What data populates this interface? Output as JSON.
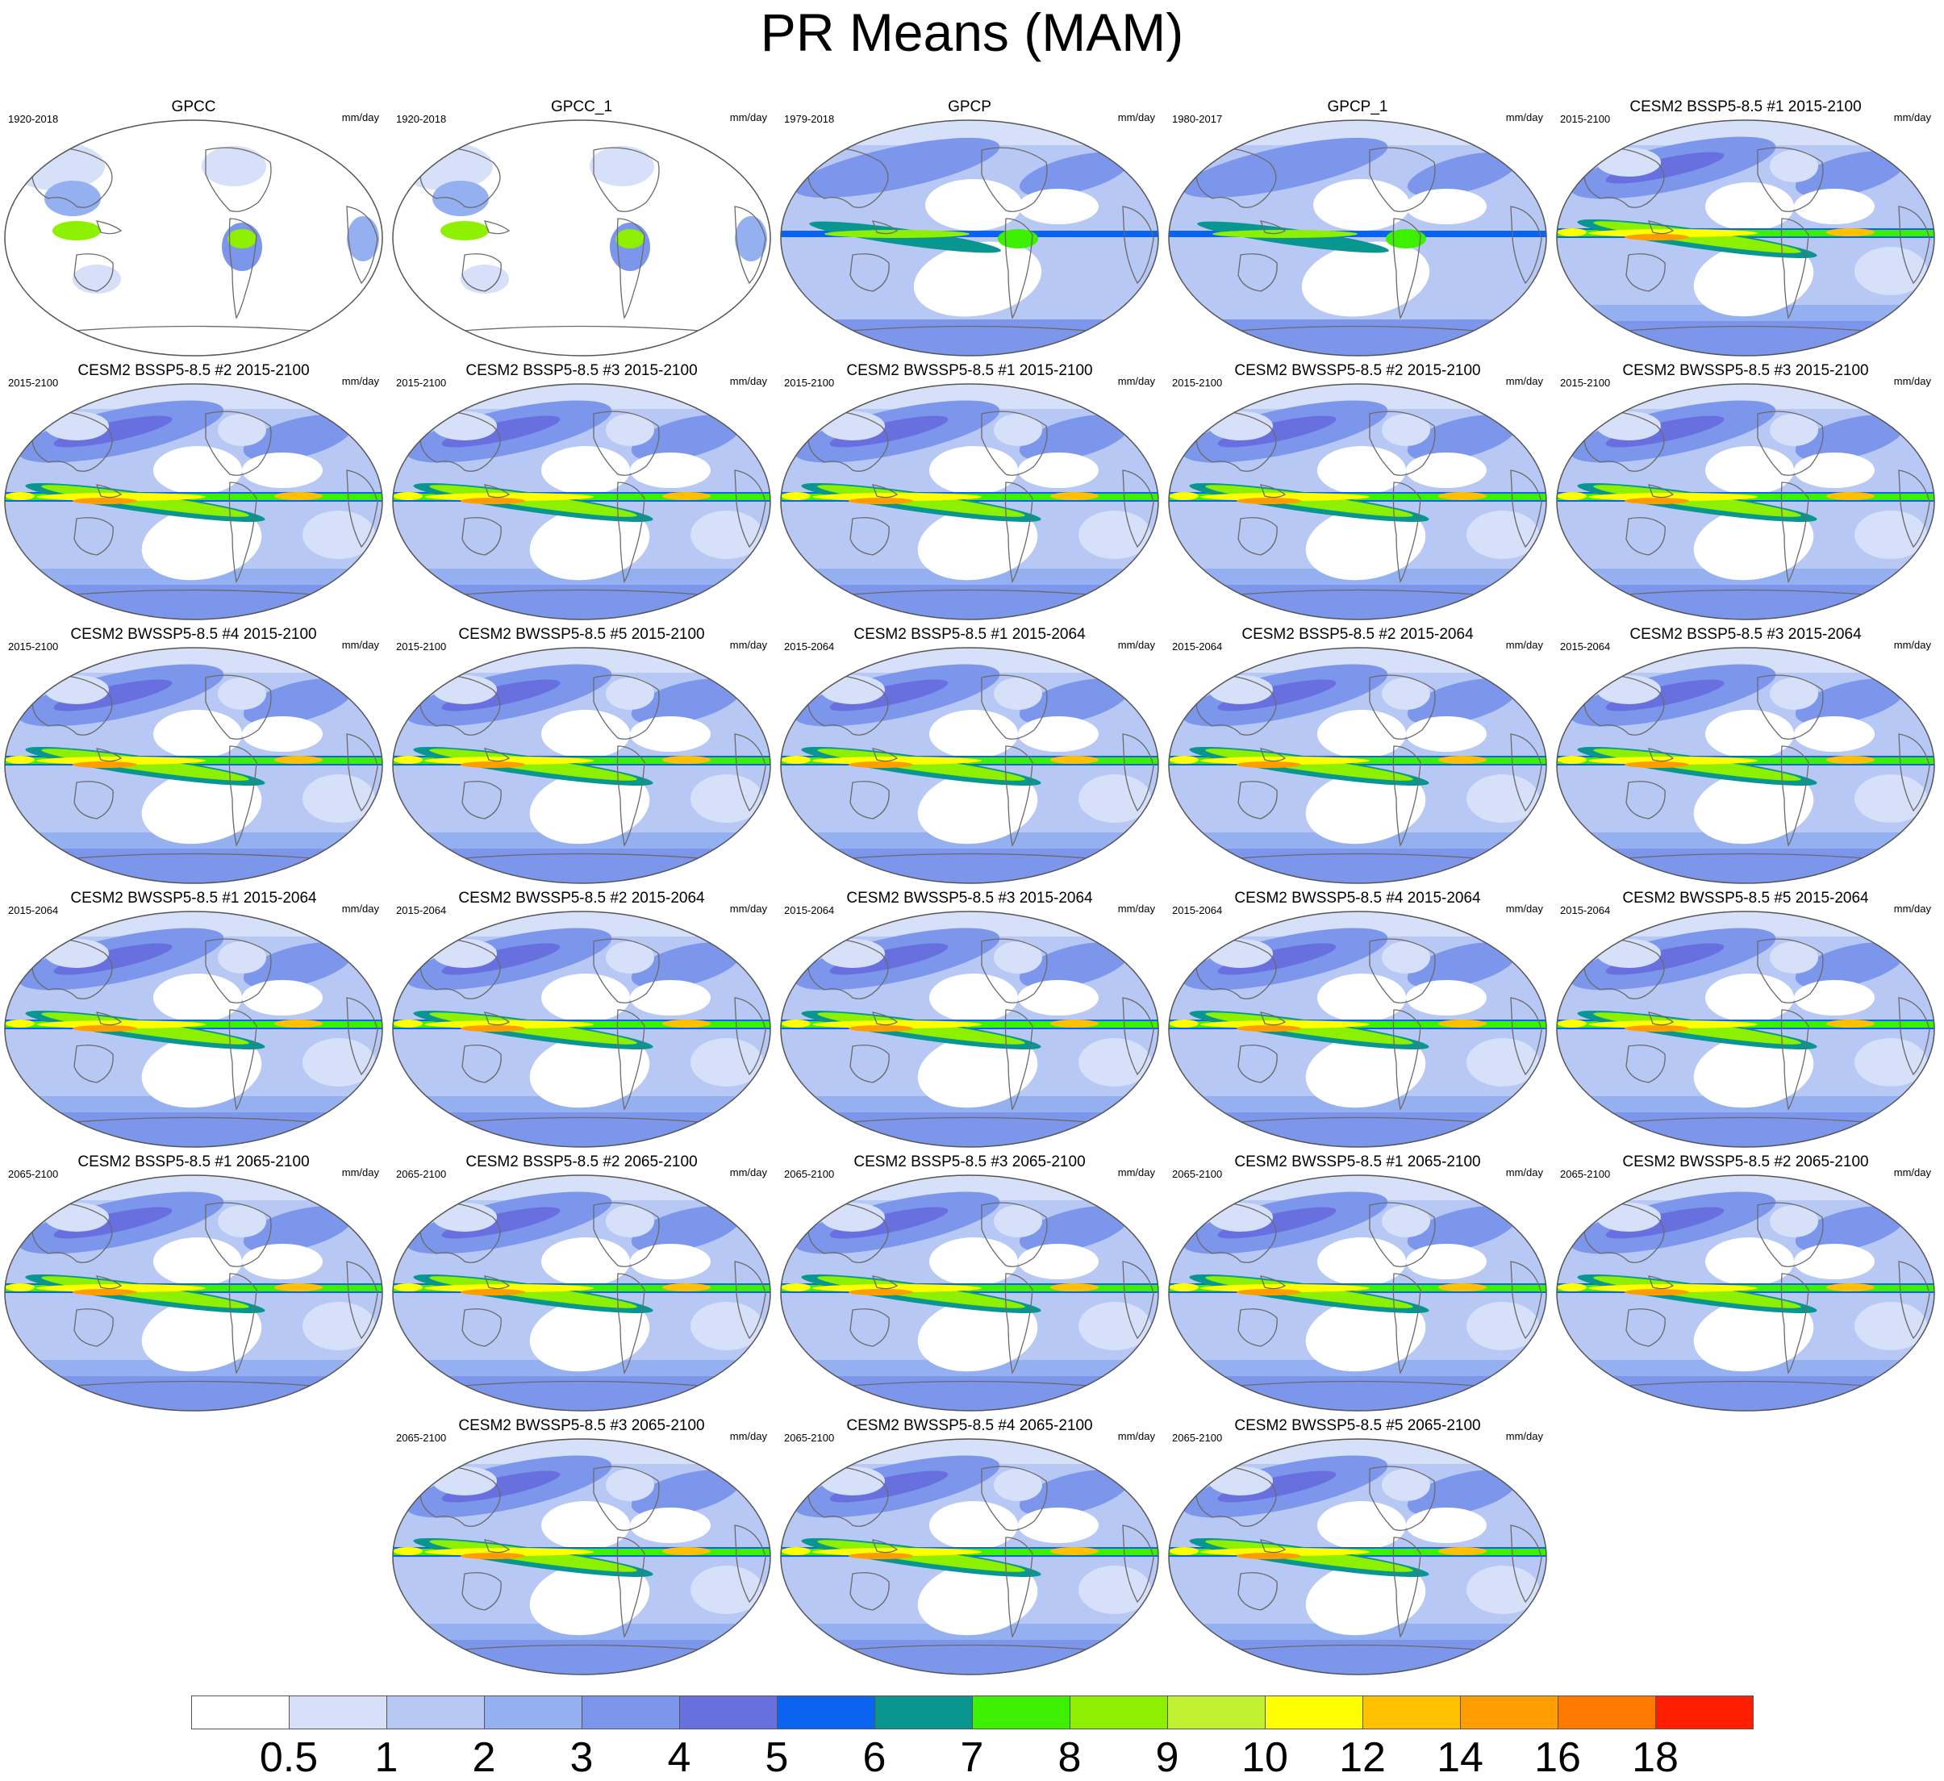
{
  "title": "PR Means (MAM)",
  "units": "mm/day",
  "panels": [
    {
      "title": "GPCC",
      "years": "1920-2018",
      "field": "gpcc"
    },
    {
      "title": "GPCC_1",
      "years": "1920-2018",
      "field": "gpcc"
    },
    {
      "title": "GPCP",
      "years": "1979-2018",
      "field": "gpcp"
    },
    {
      "title": "GPCP_1",
      "years": "1980-2017",
      "field": "gpcp"
    },
    {
      "title": "CESM2 BSSP5-8.5 #1 2015-2100",
      "years": "2015-2100",
      "field": "model"
    },
    {
      "title": "CESM2 BSSP5-8.5 #2 2015-2100",
      "years": "2015-2100",
      "field": "model"
    },
    {
      "title": "CESM2 BSSP5-8.5 #3 2015-2100",
      "years": "2015-2100",
      "field": "model"
    },
    {
      "title": "CESM2 BWSSP5-8.5 #1 2015-2100",
      "years": "2015-2100",
      "field": "model"
    },
    {
      "title": "CESM2 BWSSP5-8.5 #2 2015-2100",
      "years": "2015-2100",
      "field": "model"
    },
    {
      "title": "CESM2 BWSSP5-8.5 #3 2015-2100",
      "years": "2015-2100",
      "field": "model"
    },
    {
      "title": "CESM2 BWSSP5-8.5 #4 2015-2100",
      "years": "2015-2100",
      "field": "model"
    },
    {
      "title": "CESM2 BWSSP5-8.5 #5 2015-2100",
      "years": "2015-2100",
      "field": "model"
    },
    {
      "title": "CESM2 BSSP5-8.5 #1 2015-2064",
      "years": "2015-2064",
      "field": "model"
    },
    {
      "title": "CESM2 BSSP5-8.5 #2 2015-2064",
      "years": "2015-2064",
      "field": "model"
    },
    {
      "title": "CESM2 BSSP5-8.5 #3 2015-2064",
      "years": "2015-2064",
      "field": "model"
    },
    {
      "title": "CESM2 BWSSP5-8.5 #1 2015-2064",
      "years": "2015-2064",
      "field": "model"
    },
    {
      "title": "CESM2 BWSSP5-8.5 #2 2015-2064",
      "years": "2015-2064",
      "field": "model"
    },
    {
      "title": "CESM2 BWSSP5-8.5 #3 2015-2064",
      "years": "2015-2064",
      "field": "model"
    },
    {
      "title": "CESM2 BWSSP5-8.5 #4 2015-2064",
      "years": "2015-2064",
      "field": "model"
    },
    {
      "title": "CESM2 BWSSP5-8.5 #5 2015-2064",
      "years": "2015-2064",
      "field": "model"
    },
    {
      "title": "CESM2 BSSP5-8.5 #1 2065-2100",
      "years": "2065-2100",
      "field": "model"
    },
    {
      "title": "CESM2 BSSP5-8.5 #2 2065-2100",
      "years": "2065-2100",
      "field": "model"
    },
    {
      "title": "CESM2 BSSP5-8.5 #3 2065-2100",
      "years": "2065-2100",
      "field": "model"
    },
    {
      "title": "CESM2 BWSSP5-8.5 #1 2065-2100",
      "years": "2065-2100",
      "field": "model"
    },
    {
      "title": "CESM2 BWSSP5-8.5 #2 2065-2100",
      "years": "2065-2100",
      "field": "model"
    },
    {
      "title": "CESM2 BWSSP5-8.5 #3 2065-2100",
      "years": "2065-2100",
      "field": "model"
    },
    {
      "title": "CESM2 BWSSP5-8.5 #4 2065-2100",
      "years": "2065-2100",
      "field": "model"
    },
    {
      "title": "CESM2 BWSSP5-8.5 #5 2065-2100",
      "years": "2065-2100",
      "field": "model"
    }
  ],
  "colorbar": {
    "levels": [
      "0.5",
      "1",
      "2",
      "3",
      "4",
      "5",
      "6",
      "7",
      "8",
      "9",
      "10",
      "12",
      "14",
      "16",
      "18"
    ],
    "colors": [
      "#ffffff",
      "#d6e0f8",
      "#b8c8f4",
      "#94b0f0",
      "#7c96ec",
      "#6870e0",
      "#0a64f0",
      "#0a9690",
      "#3cf000",
      "#8cf000",
      "#c0f030",
      "#ffff00",
      "#ffc000",
      "#ff9c00",
      "#ff7800",
      "#ff1e00",
      "#cc0000"
    ]
  }
}
